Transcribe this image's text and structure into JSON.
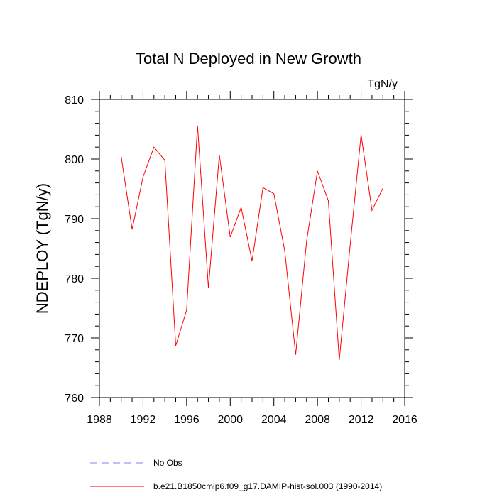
{
  "chart_data": {
    "type": "line",
    "title": "Total N Deployed in New Growth",
    "units": "TgN/y",
    "ylabel": "NDEPLOY  (TgN/y)",
    "xlabel": "",
    "xlim": [
      1988,
      2016
    ],
    "ylim": [
      760,
      810
    ],
    "xticks": [
      1988,
      1992,
      1996,
      2000,
      2004,
      2008,
      2012,
      2016
    ],
    "yticks": [
      760,
      770,
      780,
      790,
      800,
      810
    ],
    "grid": false,
    "legend_position": "bottom-left",
    "series": [
      {
        "name": "No Obs",
        "color": "#8080ff",
        "dash": "dashed",
        "x": [],
        "y": []
      },
      {
        "name": "b.e21.B1850cmip6.f09_g17.DAMIP-hist-sol.003 (1990-2014)",
        "color": "#ff0000",
        "dash": "solid",
        "x": [
          1990,
          1991,
          1992,
          1993,
          1994,
          1995,
          1996,
          1997,
          1998,
          1999,
          2000,
          2001,
          2002,
          2003,
          2004,
          2005,
          2006,
          2007,
          2008,
          2009,
          2010,
          2011,
          2012,
          2013,
          2014
        ],
        "y": [
          800.4,
          788.2,
          797.0,
          802.0,
          799.8,
          768.7,
          774.7,
          805.6,
          778.4,
          800.7,
          786.9,
          791.9,
          782.9,
          795.2,
          794.2,
          784.6,
          767.2,
          786.2,
          798.0,
          793.0,
          766.3,
          785.6,
          804.1,
          791.4,
          795.1
        ]
      }
    ]
  }
}
